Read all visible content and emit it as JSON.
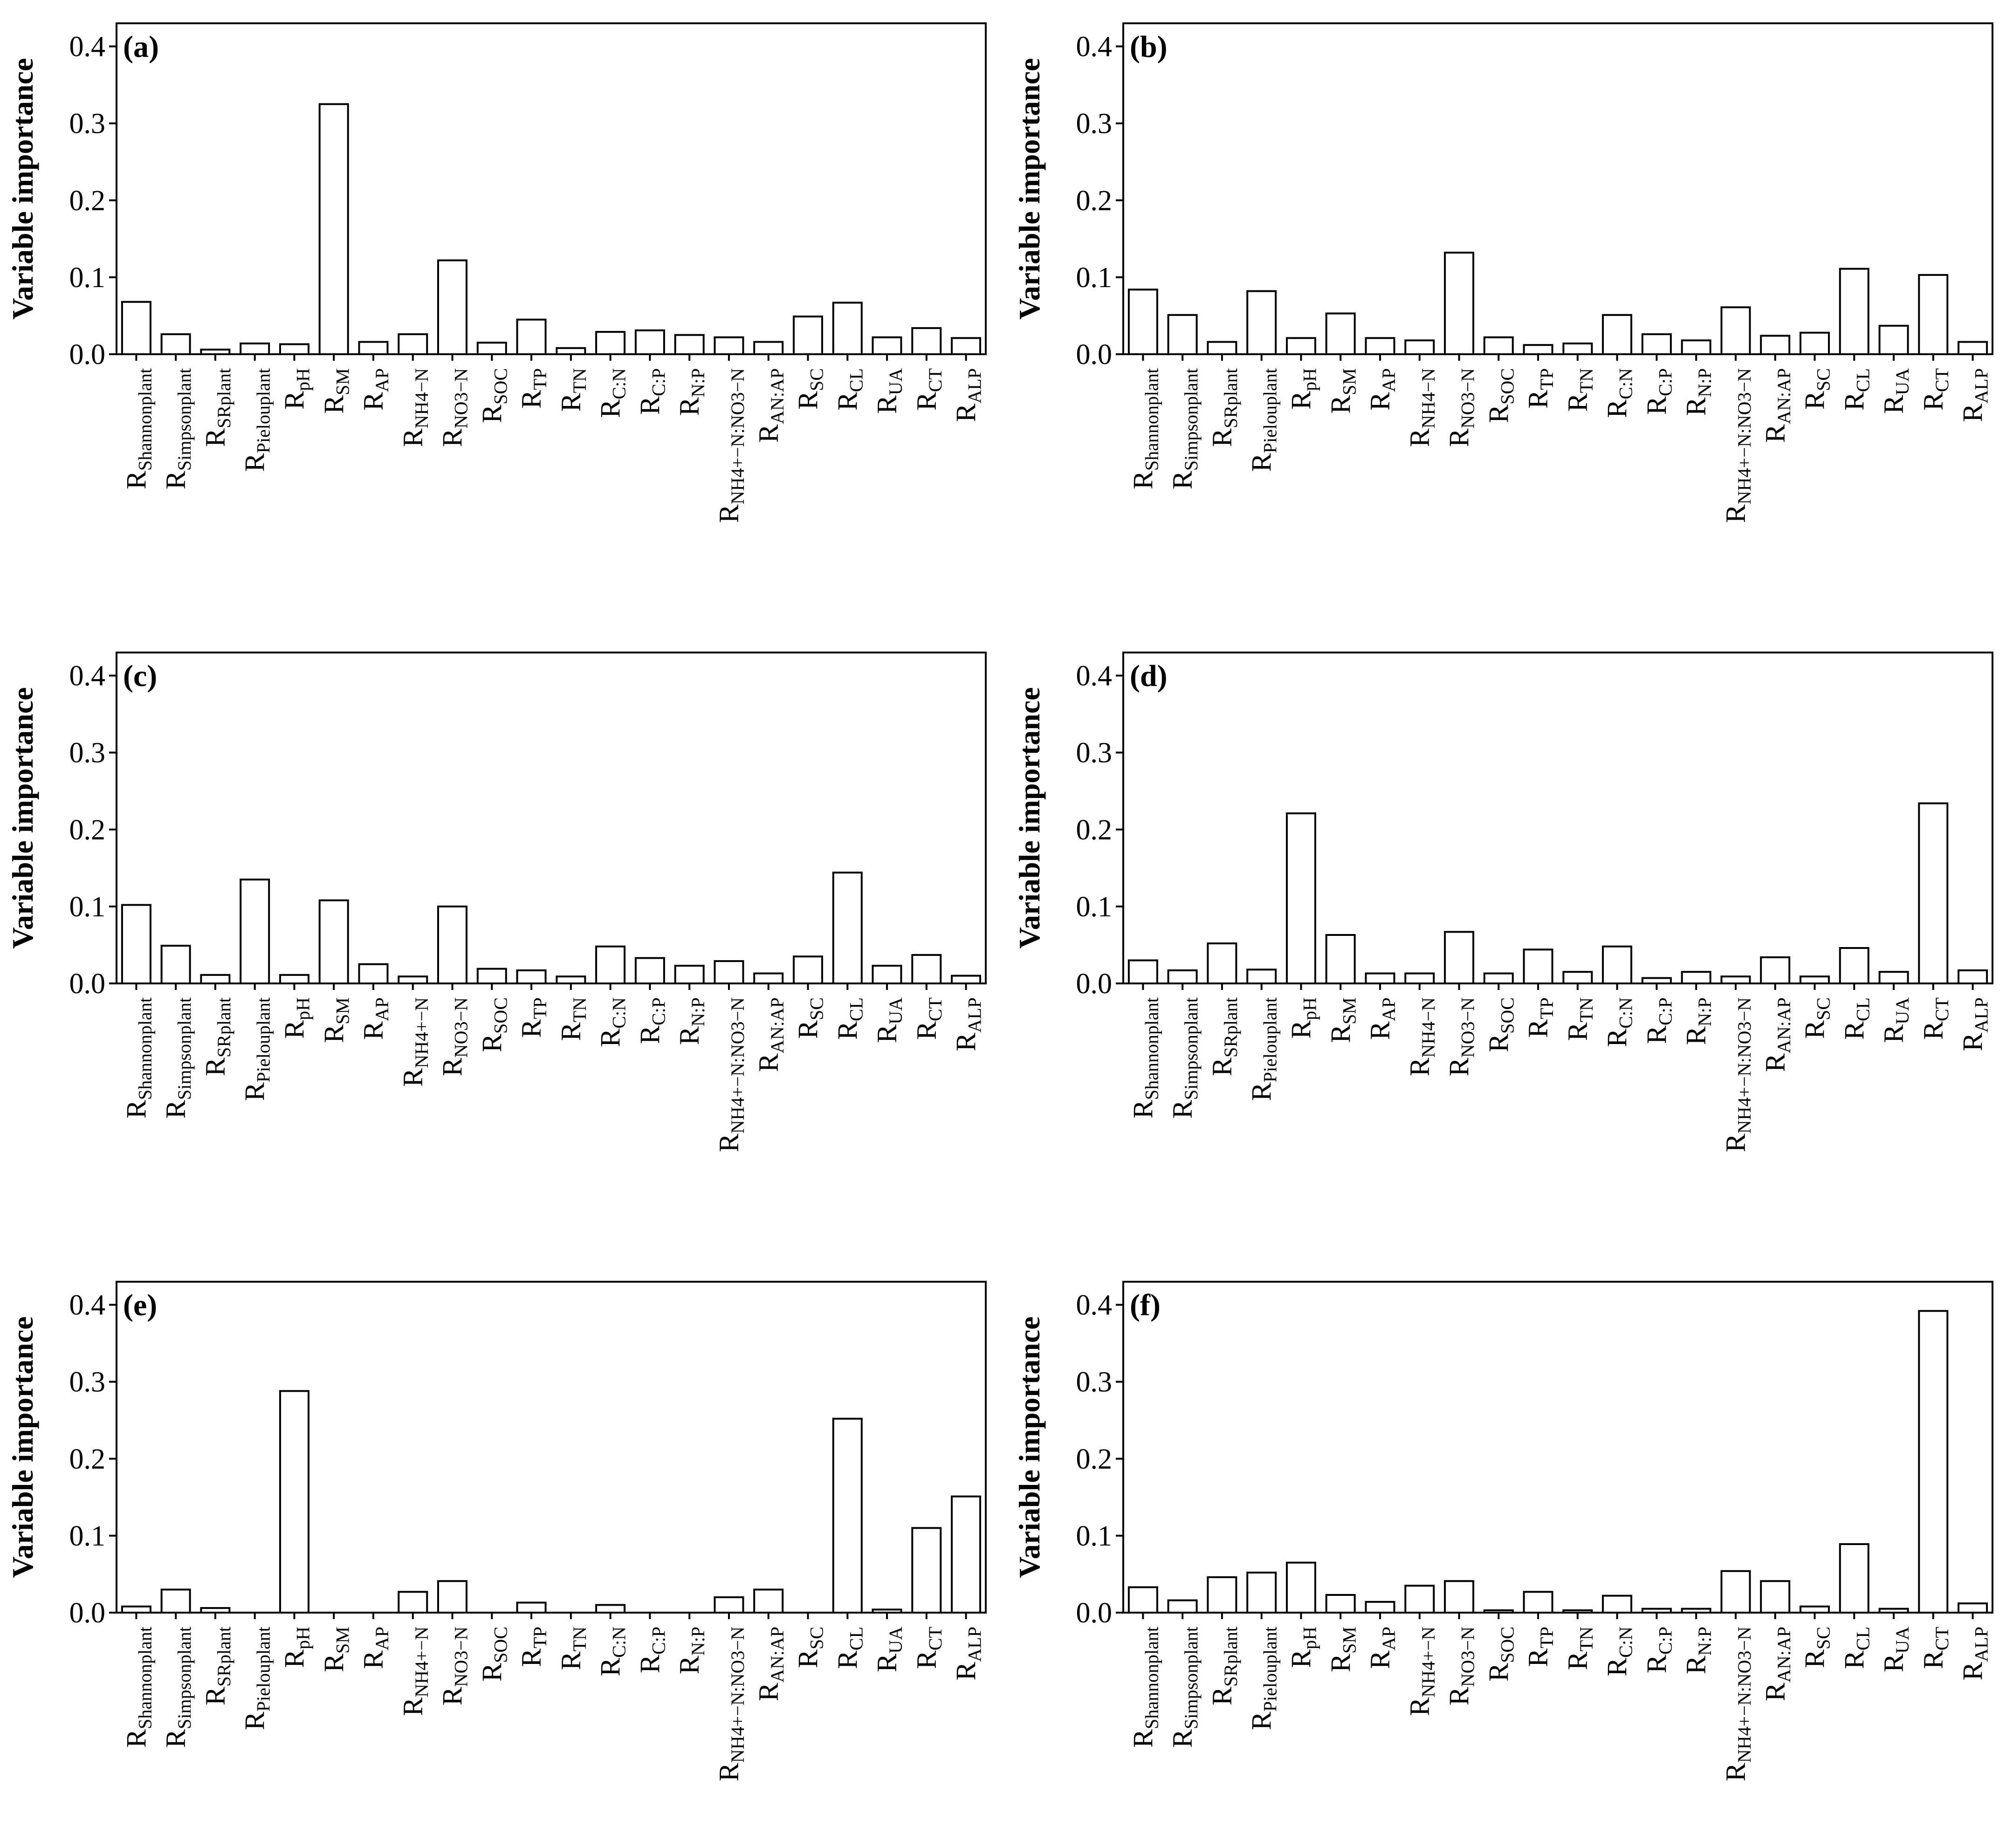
{
  "figure": {
    "y_axis_label": "Variable importance",
    "bar_fill": "#ffffff",
    "bar_stroke": "#000000"
  },
  "chart_data": [
    {
      "type": "bar",
      "panel_label": "(a)",
      "title": "",
      "xlabel": "",
      "ylabel": "Variable importance",
      "ylim": [
        0,
        0.43
      ],
      "yticks": [
        "0.0",
        "0.1",
        "0.2",
        "0.3",
        "0.4"
      ],
      "ytick_values": [
        0,
        0.1,
        0.2,
        0.3,
        0.4
      ],
      "categories": [
        {
          "main": "R",
          "sub": "Shannonplant"
        },
        {
          "main": "R",
          "sub": "Simpsonplant"
        },
        {
          "main": "R",
          "sub": "SRplant"
        },
        {
          "main": "R",
          "sub": "Pielouplant"
        },
        {
          "main": "R",
          "sub": "pH"
        },
        {
          "main": "R",
          "sub": "SM"
        },
        {
          "main": "R",
          "sub": "AP"
        },
        {
          "main": "R",
          "sub": "NH4−N"
        },
        {
          "main": "R",
          "sub": "NO3−N"
        },
        {
          "main": "R",
          "sub": "SOC"
        },
        {
          "main": "R",
          "sub": "TP"
        },
        {
          "main": "R",
          "sub": "TN"
        },
        {
          "main": "R",
          "sub": "C:N"
        },
        {
          "main": "R",
          "sub": "C:P"
        },
        {
          "main": "R",
          "sub": "N:P"
        },
        {
          "main": "R",
          "sub": "NH4+−N:NO3−N"
        },
        {
          "main": "R",
          "sub": "AN:AP"
        },
        {
          "main": "R",
          "sub": "SC"
        },
        {
          "main": "R",
          "sub": "CL"
        },
        {
          "main": "R",
          "sub": "UA"
        },
        {
          "main": "R",
          "sub": "CT"
        },
        {
          "main": "R",
          "sub": "ALP"
        }
      ],
      "values": [
        0.068,
        0.026,
        0.006,
        0.014,
        0.013,
        0.325,
        0.016,
        0.026,
        0.122,
        0.015,
        0.045,
        0.008,
        0.029,
        0.031,
        0.025,
        0.022,
        0.016,
        0.049,
        0.067,
        0.022,
        0.034,
        0.021
      ]
    },
    {
      "type": "bar",
      "panel_label": "(b)",
      "title": "",
      "xlabel": "",
      "ylabel": "Variable importance",
      "ylim": [
        0,
        0.43
      ],
      "yticks": [
        "0.0",
        "0.1",
        "0.2",
        "0.3",
        "0.4"
      ],
      "ytick_values": [
        0,
        0.1,
        0.2,
        0.3,
        0.4
      ],
      "categories": [
        {
          "main": "R",
          "sub": "Shannonplant"
        },
        {
          "main": "R",
          "sub": "Simpsonplant"
        },
        {
          "main": "R",
          "sub": "SRplant"
        },
        {
          "main": "R",
          "sub": "Pielouplant"
        },
        {
          "main": "R",
          "sub": "pH"
        },
        {
          "main": "R",
          "sub": "SM"
        },
        {
          "main": "R",
          "sub": "AP"
        },
        {
          "main": "R",
          "sub": "NH4−N"
        },
        {
          "main": "R",
          "sub": "NO3−N"
        },
        {
          "main": "R",
          "sub": "SOC"
        },
        {
          "main": "R",
          "sub": "TP"
        },
        {
          "main": "R",
          "sub": "TN"
        },
        {
          "main": "R",
          "sub": "C:N"
        },
        {
          "main": "R",
          "sub": "C:P"
        },
        {
          "main": "R",
          "sub": "N:P"
        },
        {
          "main": "R",
          "sub": "NH4+−N:NO3−N"
        },
        {
          "main": "R",
          "sub": "AN:AP"
        },
        {
          "main": "R",
          "sub": "SC"
        },
        {
          "main": "R",
          "sub": "CL"
        },
        {
          "main": "R",
          "sub": "UA"
        },
        {
          "main": "R",
          "sub": "CT"
        },
        {
          "main": "R",
          "sub": "ALP"
        }
      ],
      "values": [
        0.084,
        0.051,
        0.016,
        0.082,
        0.021,
        0.053,
        0.021,
        0.018,
        0.132,
        0.022,
        0.012,
        0.014,
        0.051,
        0.026,
        0.018,
        0.061,
        0.024,
        0.028,
        0.111,
        0.037,
        0.103,
        0.016
      ]
    },
    {
      "type": "bar",
      "panel_label": "(c)",
      "title": "",
      "xlabel": "",
      "ylabel": "Variable importance",
      "ylim": [
        0,
        0.43
      ],
      "yticks": [
        "0.0",
        "0.1",
        "0.2",
        "0.3",
        "0.4"
      ],
      "ytick_values": [
        0,
        0.1,
        0.2,
        0.3,
        0.4
      ],
      "categories": [
        {
          "main": "R",
          "sub": "Shannonplant"
        },
        {
          "main": "R",
          "sub": "Simpsonplant"
        },
        {
          "main": "R",
          "sub": "SRplant"
        },
        {
          "main": "R",
          "sub": "Pielouplant"
        },
        {
          "main": "R",
          "sub": "pH"
        },
        {
          "main": "R",
          "sub": "SM"
        },
        {
          "main": "R",
          "sub": "AP"
        },
        {
          "main": "R",
          "sub": "NH4+−N"
        },
        {
          "main": "R",
          "sub": "NO3−N"
        },
        {
          "main": "R",
          "sub": "SOC"
        },
        {
          "main": "R",
          "sub": "TP"
        },
        {
          "main": "R",
          "sub": "TN"
        },
        {
          "main": "R",
          "sub": "C:N"
        },
        {
          "main": "R",
          "sub": "C:P"
        },
        {
          "main": "R",
          "sub": "N:P"
        },
        {
          "main": "R",
          "sub": "NH4+−N:NO3−N"
        },
        {
          "main": "R",
          "sub": "AN:AP"
        },
        {
          "main": "R",
          "sub": "SC"
        },
        {
          "main": "R",
          "sub": "CL"
        },
        {
          "main": "R",
          "sub": "UA"
        },
        {
          "main": "R",
          "sub": "CT"
        },
        {
          "main": "R",
          "sub": "ALP"
        }
      ],
      "values": [
        0.102,
        0.049,
        0.011,
        0.135,
        0.011,
        0.108,
        0.025,
        0.009,
        0.1,
        0.019,
        0.017,
        0.009,
        0.048,
        0.033,
        0.023,
        0.029,
        0.013,
        0.035,
        0.144,
        0.023,
        0.037,
        0.01
      ]
    },
    {
      "type": "bar",
      "panel_label": "(d)",
      "title": "",
      "xlabel": "",
      "ylabel": "Variable importance",
      "ylim": [
        0,
        0.43
      ],
      "yticks": [
        "0.0",
        "0.1",
        "0.2",
        "0.3",
        "0.4"
      ],
      "ytick_values": [
        0,
        0.1,
        0.2,
        0.3,
        0.4
      ],
      "categories": [
        {
          "main": "R",
          "sub": "Shannonplant"
        },
        {
          "main": "R",
          "sub": "Simpsonplant"
        },
        {
          "main": "R",
          "sub": "SRplant"
        },
        {
          "main": "R",
          "sub": "Pielouplant"
        },
        {
          "main": "R",
          "sub": "pH"
        },
        {
          "main": "R",
          "sub": "SM"
        },
        {
          "main": "R",
          "sub": "AP"
        },
        {
          "main": "R",
          "sub": "NH4−N"
        },
        {
          "main": "R",
          "sub": "NO3−N"
        },
        {
          "main": "R",
          "sub": "SOC"
        },
        {
          "main": "R",
          "sub": "TP"
        },
        {
          "main": "R",
          "sub": "TN"
        },
        {
          "main": "R",
          "sub": "C:N"
        },
        {
          "main": "R",
          "sub": "C:P"
        },
        {
          "main": "R",
          "sub": "N:P"
        },
        {
          "main": "R",
          "sub": "NH4+−N:NO3−N"
        },
        {
          "main": "R",
          "sub": "AN:AP"
        },
        {
          "main": "R",
          "sub": "SC"
        },
        {
          "main": "R",
          "sub": "CL"
        },
        {
          "main": "R",
          "sub": "UA"
        },
        {
          "main": "R",
          "sub": "CT"
        },
        {
          "main": "R",
          "sub": "ALP"
        }
      ],
      "values": [
        0.03,
        0.017,
        0.052,
        0.018,
        0.221,
        0.063,
        0.013,
        0.013,
        0.067,
        0.013,
        0.044,
        0.015,
        0.048,
        0.007,
        0.015,
        0.009,
        0.034,
        0.009,
        0.046,
        0.015,
        0.234,
        0.017
      ]
    },
    {
      "type": "bar",
      "panel_label": "(e)",
      "title": "",
      "xlabel": "",
      "ylabel": "Variable importance",
      "ylim": [
        0,
        0.43
      ],
      "yticks": [
        "0.0",
        "0.1",
        "0.2",
        "0.3",
        "0.4"
      ],
      "ytick_values": [
        0,
        0.1,
        0.2,
        0.3,
        0.4
      ],
      "categories": [
        {
          "main": "R",
          "sub": "Shannonplant"
        },
        {
          "main": "R",
          "sub": "Simpsonplant"
        },
        {
          "main": "R",
          "sub": "SRplant"
        },
        {
          "main": "R",
          "sub": "Pielouplant"
        },
        {
          "main": "R",
          "sub": "pH"
        },
        {
          "main": "R",
          "sub": "SM"
        },
        {
          "main": "R",
          "sub": "AP"
        },
        {
          "main": "R",
          "sub": "NH4+−N"
        },
        {
          "main": "R",
          "sub": "NO3−N"
        },
        {
          "main": "R",
          "sub": "SOC"
        },
        {
          "main": "R",
          "sub": "TP"
        },
        {
          "main": "R",
          "sub": "TN"
        },
        {
          "main": "R",
          "sub": "C:N"
        },
        {
          "main": "R",
          "sub": "C:P"
        },
        {
          "main": "R",
          "sub": "N:P"
        },
        {
          "main": "R",
          "sub": "NH4+−N:NO3−N"
        },
        {
          "main": "R",
          "sub": "AN:AP"
        },
        {
          "main": "R",
          "sub": "SC"
        },
        {
          "main": "R",
          "sub": "CL"
        },
        {
          "main": "R",
          "sub": "UA"
        },
        {
          "main": "R",
          "sub": "CT"
        },
        {
          "main": "R",
          "sub": "ALP"
        }
      ],
      "values": [
        0.008,
        0.03,
        0.006,
        0,
        0.288,
        0,
        0,
        0.027,
        0.041,
        0,
        0.013,
        0,
        0.01,
        0,
        0,
        0.02,
        0.03,
        0,
        0.252,
        0.004,
        0.11,
        0.151
      ]
    },
    {
      "type": "bar",
      "panel_label": "(f)",
      "title": "",
      "xlabel": "",
      "ylabel": "Variable importance",
      "ylim": [
        0,
        0.43
      ],
      "yticks": [
        "0.0",
        "0.1",
        "0.2",
        "0.3",
        "0.4"
      ],
      "ytick_values": [
        0,
        0.1,
        0.2,
        0.3,
        0.4
      ],
      "categories": [
        {
          "main": "R",
          "sub": "Shannonplant"
        },
        {
          "main": "R",
          "sub": "Simpsonplant"
        },
        {
          "main": "R",
          "sub": "SRplant"
        },
        {
          "main": "R",
          "sub": "Pielouplant"
        },
        {
          "main": "R",
          "sub": "pH"
        },
        {
          "main": "R",
          "sub": "SM"
        },
        {
          "main": "R",
          "sub": "AP"
        },
        {
          "main": "R",
          "sub": "NH4+−N"
        },
        {
          "main": "R",
          "sub": "NO3−N"
        },
        {
          "main": "R",
          "sub": "SOC"
        },
        {
          "main": "R",
          "sub": "TP"
        },
        {
          "main": "R",
          "sub": "TN"
        },
        {
          "main": "R",
          "sub": "C:N"
        },
        {
          "main": "R",
          "sub": "C:P"
        },
        {
          "main": "R",
          "sub": "N:P"
        },
        {
          "main": "R",
          "sub": "NH4+−N:NO3−N"
        },
        {
          "main": "R",
          "sub": "AN:AP"
        },
        {
          "main": "R",
          "sub": "SC"
        },
        {
          "main": "R",
          "sub": "CL"
        },
        {
          "main": "R",
          "sub": "UA"
        },
        {
          "main": "R",
          "sub": "CT"
        },
        {
          "main": "R",
          "sub": "ALP"
        }
      ],
      "values": [
        0.033,
        0.016,
        0.046,
        0.052,
        0.065,
        0.023,
        0.014,
        0.035,
        0.041,
        0.003,
        0.027,
        0.003,
        0.022,
        0.005,
        0.005,
        0.054,
        0.041,
        0.008,
        0.089,
        0.005,
        0.392,
        0.012
      ]
    }
  ]
}
